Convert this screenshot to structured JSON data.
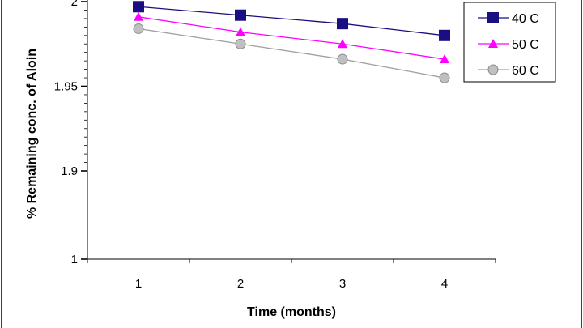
{
  "chart_data": {
    "type": "line",
    "title": "",
    "xlabel": "Time (months)",
    "ylabel": "% Remaining conc. of Aloin",
    "x": [
      1,
      2,
      3,
      4
    ],
    "x_tick_labels": [
      "1",
      "2",
      "3",
      "4"
    ],
    "xlim": [
      0.5,
      4.5
    ],
    "y_ticks": [
      1,
      1.9,
      1.95,
      2
    ],
    "y_tick_labels": [
      "1",
      "1.9",
      "1.95",
      "2"
    ],
    "ylim": [
      1,
      2
    ],
    "y_scale": "broken: 1 to 1.9 compressed",
    "grid": false,
    "legend_position": "top-right",
    "series": [
      {
        "name": "40 C",
        "values": [
          1.997,
          1.992,
          1.987,
          1.98
        ],
        "color": "#1a0f80",
        "marker": "square"
      },
      {
        "name": "50 C",
        "values": [
          1.991,
          1.982,
          1.975,
          1.966
        ],
        "color": "#ff00ff",
        "marker": "triangle"
      },
      {
        "name": "60 C",
        "values": [
          1.984,
          1.975,
          1.966,
          1.955
        ],
        "color": "#a0a0a0",
        "marker": "circle"
      }
    ]
  }
}
